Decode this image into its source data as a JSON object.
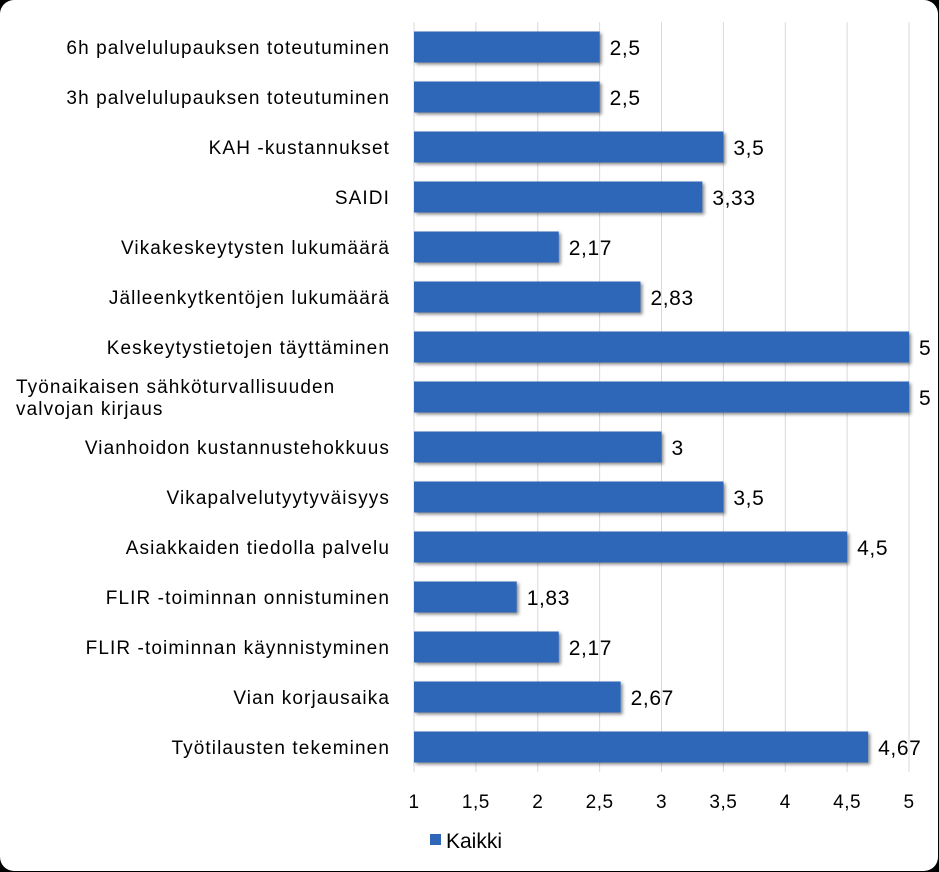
{
  "chart_data": {
    "type": "bar",
    "orientation": "horizontal",
    "categories": [
      "6h palvelulupauksen  toteutuminen",
      "3h palvelulupauksen  toteutuminen",
      "KAH -kustannukset",
      "SAIDI",
      "Vikakeskeytysten lukumäärä",
      "Jälleenkytkentöjen lukumäärä",
      "Keskeytystietojen täyttäminen",
      "Työnaikaisen sähköturvallisuuden valvojan kirjaus",
      "Vianhoidon kustannustehokkuus",
      "Vikapalvelutyytyväisyys",
      "Asiakkaiden tiedolla palvelu",
      "FLIR -toiminnan onnistuminen",
      "FLIR -toiminnan käynnistyminen",
      "Vian korjausaika",
      "Työtilausten tekeminen"
    ],
    "category_lines": [
      [
        "6h palvelulupauksen  toteutuminen"
      ],
      [
        "3h palvelulupauksen  toteutuminen"
      ],
      [
        "KAH -kustannukset"
      ],
      [
        "SAIDI"
      ],
      [
        "Vikakeskeytysten lukumäärä"
      ],
      [
        "Jälleenkytkentöjen lukumäärä"
      ],
      [
        "Keskeytystietojen täyttäminen"
      ],
      [
        "Työnaikaisen sähköturvallisuuden",
        "valvojan kirjaus"
      ],
      [
        "Vianhoidon kustannustehokkuus"
      ],
      [
        "Vikapalvelutyytyväisyys"
      ],
      [
        "Asiakkaiden tiedolla palvelu"
      ],
      [
        "FLIR -toiminnan onnistuminen"
      ],
      [
        "FLIR -toiminnan käynnistyminen"
      ],
      [
        "Vian korjausaika"
      ],
      [
        "Työtilausten tekeminen"
      ]
    ],
    "series": [
      {
        "name": "Kaikki",
        "color": "#2F66B8",
        "values": [
          2.5,
          2.5,
          3.5,
          3.33,
          2.17,
          2.83,
          5,
          5,
          3,
          3.5,
          4.5,
          1.83,
          2.17,
          2.67,
          4.67
        ],
        "data_labels": [
          "2,5",
          "2,5",
          "3,5",
          "3,33",
          "2,17",
          "2,83",
          "5",
          "5",
          "3",
          "3,5",
          "4,5",
          "1,83",
          "2,17",
          "2,67",
          "4,67"
        ]
      }
    ],
    "xlim": [
      1,
      5
    ],
    "x_ticks": [
      1,
      1.5,
      2,
      2.5,
      3,
      3.5,
      4,
      4.5,
      5
    ],
    "x_tick_labels": [
      "1",
      "1,5",
      "2",
      "2,5",
      "3",
      "3,5",
      "4",
      "4,5",
      "5"
    ],
    "title": "",
    "xlabel": "",
    "ylabel": "",
    "grid": "vertical",
    "legend_position": "bottom-left",
    "background": "#ffffff",
    "gridline_color": "#d9d9d9"
  }
}
